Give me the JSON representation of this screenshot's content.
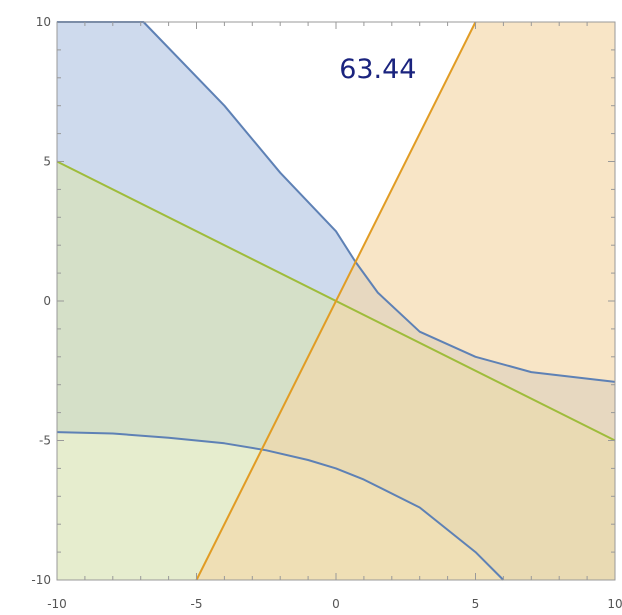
{
  "chart_data": {
    "type": "area",
    "title": "",
    "xlabel": "",
    "ylabel": "",
    "xlim": [
      -10,
      10
    ],
    "ylim": [
      -10,
      10
    ],
    "x_ticks": [
      -10,
      -5,
      0,
      5,
      10
    ],
    "y_ticks": [
      -10,
      -5,
      0,
      5,
      10
    ],
    "x_tick_labels": [
      "-10",
      "-5",
      "0",
      "5",
      "10"
    ],
    "y_tick_labels": [
      "-10",
      "-5",
      "0",
      "5",
      "10"
    ],
    "grid": false,
    "annotation": {
      "text": "63.44",
      "x": 1.5,
      "y": 8.0
    },
    "colors": {
      "blue_fill": "#c5d3ea",
      "blue_stroke": "#5e81b5",
      "green_fill": "#d8e4b3",
      "green_stroke": "#9fbc3b",
      "orange_fill": "#f5d7a7",
      "orange_stroke": "#e19c24",
      "frame": "#999999",
      "annotation": "#1a237e"
    },
    "regions": [
      {
        "id": "blue-region",
        "color": "blue",
        "description": "Region between upper and lower hyperbola-like curves",
        "polygon": [
          [
            -10,
            10
          ],
          [
            -6.9,
            10
          ],
          [
            -4,
            7
          ],
          [
            -2,
            4.6
          ],
          [
            0,
            2.5
          ],
          [
            0.7,
            1.4
          ],
          [
            1.5,
            0.3
          ],
          [
            3,
            -1.1
          ],
          [
            5,
            -2.0
          ],
          [
            7,
            -2.55
          ],
          [
            10,
            -2.9
          ],
          [
            10,
            -10
          ],
          [
            6,
            -10
          ],
          [
            5,
            -9.0
          ],
          [
            3,
            -7.4
          ],
          [
            1,
            -6.4
          ],
          [
            0,
            -6.0
          ],
          [
            -1,
            -5.7
          ],
          [
            -2.5,
            -5.35
          ],
          [
            -4,
            -5.1
          ],
          [
            -6,
            -4.9
          ],
          [
            -8,
            -4.75
          ],
          [
            -10,
            -4.7
          ]
        ]
      },
      {
        "id": "green-region",
        "color": "green",
        "description": "Half-plane below the line y = -x/2",
        "polygon": [
          [
            -10,
            5
          ],
          [
            10,
            -5
          ],
          [
            10,
            -10
          ],
          [
            -10,
            -10
          ]
        ]
      },
      {
        "id": "orange-region",
        "color": "orange",
        "description": "Half-plane below/right of the line y = 2x",
        "polygon": [
          [
            5,
            10
          ],
          [
            10,
            10
          ],
          [
            10,
            -10
          ],
          [
            -5,
            -10
          ]
        ]
      }
    ],
    "curves": [
      {
        "id": "upper-boundary-curve",
        "color": "blue",
        "points": [
          [
            -10,
            10
          ],
          [
            -6.9,
            10
          ],
          [
            -4,
            7
          ],
          [
            -2,
            4.6
          ],
          [
            0,
            2.5
          ],
          [
            0.7,
            1.4
          ],
          [
            1.5,
            0.3
          ],
          [
            3,
            -1.1
          ],
          [
            5,
            -2.0
          ],
          [
            7,
            -2.55
          ],
          [
            10,
            -2.9
          ]
        ]
      },
      {
        "id": "lower-boundary-curve",
        "color": "blue",
        "points": [
          [
            -10,
            -4.7
          ],
          [
            -8,
            -4.75
          ],
          [
            -6,
            -4.9
          ],
          [
            -4,
            -5.1
          ],
          [
            -2.5,
            -5.35
          ],
          [
            -1,
            -5.7
          ],
          [
            0,
            -6.0
          ],
          [
            1,
            -6.4
          ],
          [
            3,
            -7.4
          ],
          [
            5,
            -9.0
          ],
          [
            6,
            -10
          ]
        ]
      },
      {
        "id": "green-boundary-line",
        "color": "green",
        "points": [
          [
            -10,
            5
          ],
          [
            10,
            -5
          ]
        ]
      },
      {
        "id": "orange-boundary-line",
        "color": "orange",
        "points": [
          [
            -5,
            -10
          ],
          [
            5,
            10
          ]
        ]
      }
    ]
  }
}
